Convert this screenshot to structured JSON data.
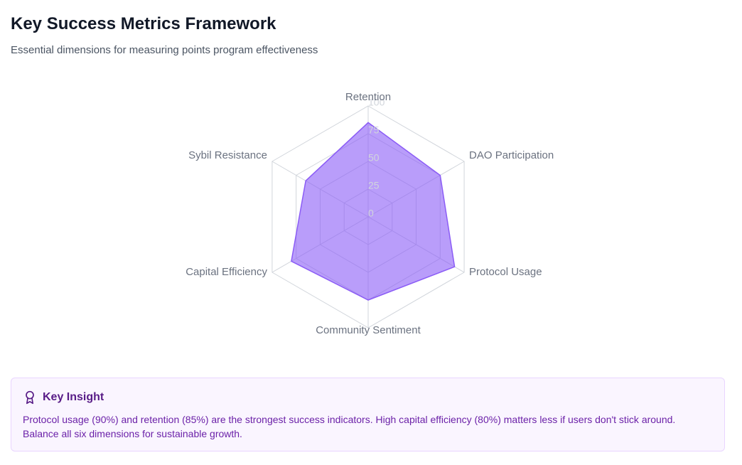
{
  "header": {
    "title": "Key Success Metrics Framework",
    "subtitle": "Essential dimensions for measuring points program effectiveness"
  },
  "chart_data": {
    "type": "radar",
    "categories": [
      "Retention",
      "DAO Participation",
      "Protocol Usage",
      "Community Sentiment",
      "Capital Efficiency",
      "Sybil Resistance"
    ],
    "values": [
      85,
      75,
      90,
      75,
      80,
      65
    ],
    "color": "#8b5cf6",
    "ylim": [
      0,
      100
    ],
    "yticks": [
      0,
      25,
      50,
      75,
      100
    ],
    "grid": true
  },
  "insight": {
    "title": "Key Insight",
    "text": "Protocol usage (90%) and retention (85%) are the strongest success indicators. High capital efficiency (80%) matters less if users don't stick around. Balance all six dimensions for sustainable growth."
  }
}
